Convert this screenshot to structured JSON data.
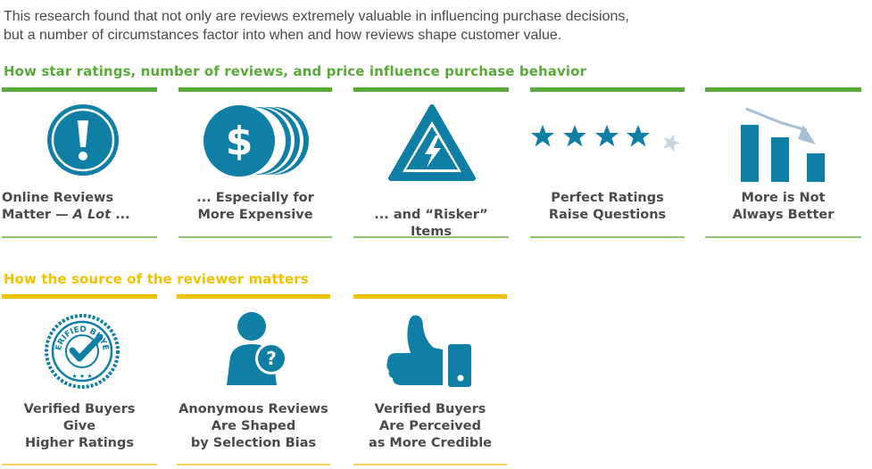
{
  "intro": {
    "line1": "This research found that not only are reviews extremely valuable in influencing purchase decisions,",
    "line2": "but a number of circumstances factor into when and how reviews shape customer value."
  },
  "section1": {
    "heading": "How star ratings, number of reviews, and price influence purchase behavior",
    "cards": [
      {
        "line1": "Online Reviews",
        "line2a": "Matter — ",
        "line2b": "A Lot",
        "line2c": " ...",
        "icon": "exclamation-icon"
      },
      {
        "line1": "... Especially for",
        "line2": "More Expensive",
        "icon": "coins-dollar-icon"
      },
      {
        "line1": "... and “Risker” Items",
        "icon": "warning-lightning-icon"
      },
      {
        "line1": "Perfect Ratings",
        "line2": "Raise Questions",
        "icon": "stars-rating-icon"
      },
      {
        "line1": "More is Not",
        "line2": "Always Better",
        "icon": "declining-bar-chart-icon"
      }
    ]
  },
  "section2": {
    "heading": "How the source of the reviewer matters",
    "cards": [
      {
        "line1": "Verified Buyers",
        "line2": "Give",
        "line3": "Higher Ratings",
        "icon": "verified-buyer-badge-icon",
        "badge_text": "VERIFIED BUYER"
      },
      {
        "line1": "Anonymous Reviews",
        "line2": "Are Shaped",
        "line3": "by Selection Bias",
        "icon": "anonymous-user-icon"
      },
      {
        "line1": "Verified Buyers",
        "line2": "Are Perceived",
        "line3": "as More Credible",
        "icon": "thumbs-up-icon"
      }
    ]
  },
  "colors": {
    "icon_blue": "#0f7fa5",
    "green": "#5aaa3a",
    "yellow": "#f2c200",
    "text": "#4a4a4a",
    "star_gray": "#c9d3dc"
  }
}
